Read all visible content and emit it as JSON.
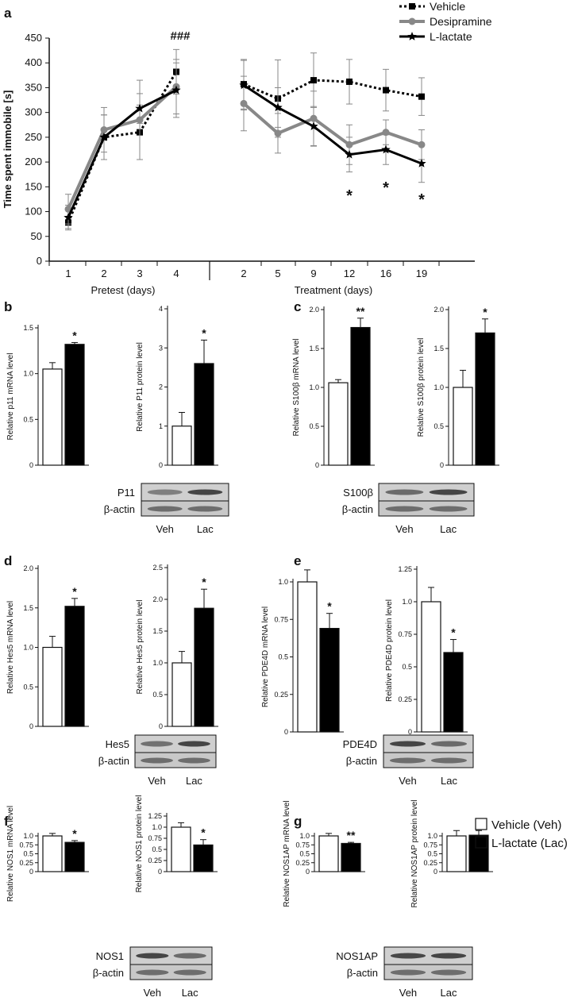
{
  "chart_data": [
    {
      "panel": "a",
      "type": "line",
      "ylabel": "Time spent immobile [s]",
      "ylim": [
        0,
        450
      ],
      "yticks": [
        0,
        50,
        100,
        150,
        200,
        250,
        300,
        350,
        400,
        450
      ],
      "groups": [
        {
          "label": "Pretest (days)",
          "x": [
            "1",
            "2",
            "3",
            "4"
          ]
        },
        {
          "label": "Treatment (days)",
          "x": [
            "2",
            "5",
            "9",
            "12",
            "16",
            "19"
          ]
        }
      ],
      "legend": [
        "Vehicle",
        "Desipramine",
        "L-lactate"
      ],
      "series": [
        {
          "name": "Vehicle",
          "color": "#000000",
          "style": "dotted",
          "marker": "square",
          "pretest": [
            78,
            250,
            260,
            382
          ],
          "pretest_err": [
            12,
            45,
            55,
            45
          ],
          "treatment": [
            357,
            328,
            365,
            362,
            345,
            332
          ],
          "treatment_err": [
            50,
            78,
            55,
            45,
            42,
            38
          ]
        },
        {
          "name": "Desipramine",
          "color": "#888888",
          "style": "solid",
          "marker": "circle",
          "pretest": [
            105,
            265,
            285,
            352
          ],
          "pretest_err": [
            30,
            45,
            80,
            55
          ],
          "treatment": [
            318,
            258,
            288,
            235,
            260,
            235
          ],
          "treatment_err": [
            55,
            40,
            55,
            40,
            25,
            30
          ]
        },
        {
          "name": "L-lactate",
          "color": "#000000",
          "style": "solid",
          "marker": "star",
          "pretest": [
            88,
            250,
            308,
            345
          ],
          "pretest_err": [
            25,
            45,
            30,
            55
          ],
          "treatment": [
            355,
            310,
            272,
            215,
            225,
            197
          ],
          "treatment_err": [
            50,
            40,
            40,
            35,
            30,
            38
          ]
        }
      ],
      "annotations": [
        {
          "text": "###",
          "at": "pretest-4"
        },
        {
          "text": "*",
          "at": "treatment-12"
        },
        {
          "text": "*",
          "at": "treatment-16"
        },
        {
          "text": "*",
          "at": "treatment-19"
        }
      ]
    },
    {
      "panel": "b",
      "type": "bar",
      "ylabel": "Relative p11 mRNA level",
      "ylim": [
        0,
        1.5
      ],
      "yticks": [
        "0",
        "0.5",
        "1.0",
        "1.5"
      ],
      "values": [
        1.05,
        1.32
      ],
      "errors": [
        0.07,
        0.02
      ],
      "sig": "*"
    },
    {
      "panel": "b",
      "type": "bar",
      "ylabel": "Relative P11 protein level",
      "ylim": [
        0,
        4
      ],
      "yticks": [
        "0",
        "1",
        "2",
        "3",
        "4"
      ],
      "values": [
        1.0,
        2.6
      ],
      "errors": [
        0.35,
        0.6
      ],
      "sig": "*",
      "blot": {
        "protein": "P11",
        "loading": "β-actin"
      }
    },
    {
      "panel": "c",
      "type": "bar",
      "ylabel": "Relative S100β mRNA level",
      "ylim": [
        0,
        2.0
      ],
      "yticks": [
        "0",
        "0.5",
        "1.0",
        "1.5",
        "2.0"
      ],
      "values": [
        1.06,
        1.77
      ],
      "errors": [
        0.04,
        0.12
      ],
      "sig": "**"
    },
    {
      "panel": "c",
      "type": "bar",
      "ylabel": "Relative S100β protein level",
      "ylim": [
        0,
        2.0
      ],
      "yticks": [
        "0",
        "0.5",
        "1.0",
        "1.5",
        "2.0"
      ],
      "values": [
        1.0,
        1.7
      ],
      "errors": [
        0.22,
        0.18
      ],
      "sig": "*",
      "blot": {
        "protein": "S100β",
        "loading": "β-actin"
      }
    },
    {
      "panel": "d",
      "type": "bar",
      "ylabel": "Relative Hes5 mRNA level",
      "ylim": [
        0,
        2.0
      ],
      "yticks": [
        "0",
        "0.5",
        "1.0",
        "1.5",
        "2.0"
      ],
      "values": [
        1.0,
        1.52
      ],
      "errors": [
        0.14,
        0.1
      ],
      "sig": "*"
    },
    {
      "panel": "d",
      "type": "bar",
      "ylabel": "Relative Hes5 protein level",
      "ylim": [
        0,
        2.5
      ],
      "yticks": [
        "0",
        "0.5",
        "1.0",
        "1.5",
        "2.0",
        "2.5"
      ],
      "values": [
        1.0,
        1.86
      ],
      "errors": [
        0.18,
        0.3
      ],
      "sig": "*",
      "blot": {
        "protein": "Hes5",
        "loading": "β-actin"
      }
    },
    {
      "panel": "e",
      "type": "bar",
      "ylabel": "Relative PDE4D mRNA level",
      "ylim": [
        0,
        1.0
      ],
      "yticks": [
        "0",
        "0.25",
        "0.5",
        "0.75",
        "1.0"
      ],
      "values": [
        1.0,
        0.69
      ],
      "errors": [
        0.08,
        0.1
      ],
      "sig": "*"
    },
    {
      "panel": "e",
      "type": "bar",
      "ylabel": "Relative PDE4D protein level",
      "ylim": [
        0,
        1.25
      ],
      "yticks": [
        "0",
        "0.25",
        "0.5",
        "0.75",
        "1.0",
        "1.25"
      ],
      "values": [
        1.0,
        0.61
      ],
      "errors": [
        0.11,
        0.1
      ],
      "sig": "*",
      "blot": {
        "protein": "PDE4D",
        "loading": "β-actin"
      }
    },
    {
      "panel": "f",
      "type": "bar",
      "ylabel": "Relative NOS1 mRNA level",
      "ylim": [
        0,
        1.0
      ],
      "yticks": [
        "0",
        "0.25",
        "0.5",
        "0.75",
        "1.0"
      ],
      "values": [
        1.0,
        0.82
      ],
      "errors": [
        0.07,
        0.05
      ],
      "sig": "*"
    },
    {
      "panel": "f",
      "type": "bar",
      "ylabel": "Relative NOS1 protein level",
      "ylim": [
        0,
        1.25
      ],
      "yticks": [
        "0",
        "0.25",
        "0.5",
        "0.75",
        "1.0",
        "1.25"
      ],
      "values": [
        1.0,
        0.6
      ],
      "errors": [
        0.1,
        0.12
      ],
      "sig": "*",
      "blot": {
        "protein": "NOS1",
        "loading": "β-actin"
      }
    },
    {
      "panel": "g",
      "type": "bar",
      "ylabel": "Relative NOS1AP mRNA level",
      "ylim": [
        0,
        1.0
      ],
      "yticks": [
        "0",
        "0.25",
        "0.5",
        "0.75",
        "1.0"
      ],
      "values": [
        1.0,
        0.79
      ],
      "errors": [
        0.07,
        0.03
      ],
      "sig": "**"
    },
    {
      "panel": "g",
      "type": "bar",
      "ylabel": "Relative NOS1AP protein level",
      "ylim": [
        0,
        1.0
      ],
      "yticks": [
        "0",
        "0.25",
        "0.5",
        "0.75",
        "1.0"
      ],
      "values": [
        1.0,
        1.02
      ],
      "errors": [
        0.15,
        0.13
      ],
      "sig": "",
      "blot": {
        "protein": "NOS1AP",
        "loading": "β-actin"
      }
    }
  ],
  "panel_letters": [
    "a",
    "b",
    "c",
    "d",
    "e",
    "f",
    "g"
  ],
  "lane_labels": [
    "Veh",
    "Lac"
  ],
  "bar_legend": [
    {
      "label": "Vehicle (Veh)",
      "fill": "#ffffff"
    },
    {
      "label": "L-lactate (Lac)",
      "fill": "#000000"
    }
  ]
}
